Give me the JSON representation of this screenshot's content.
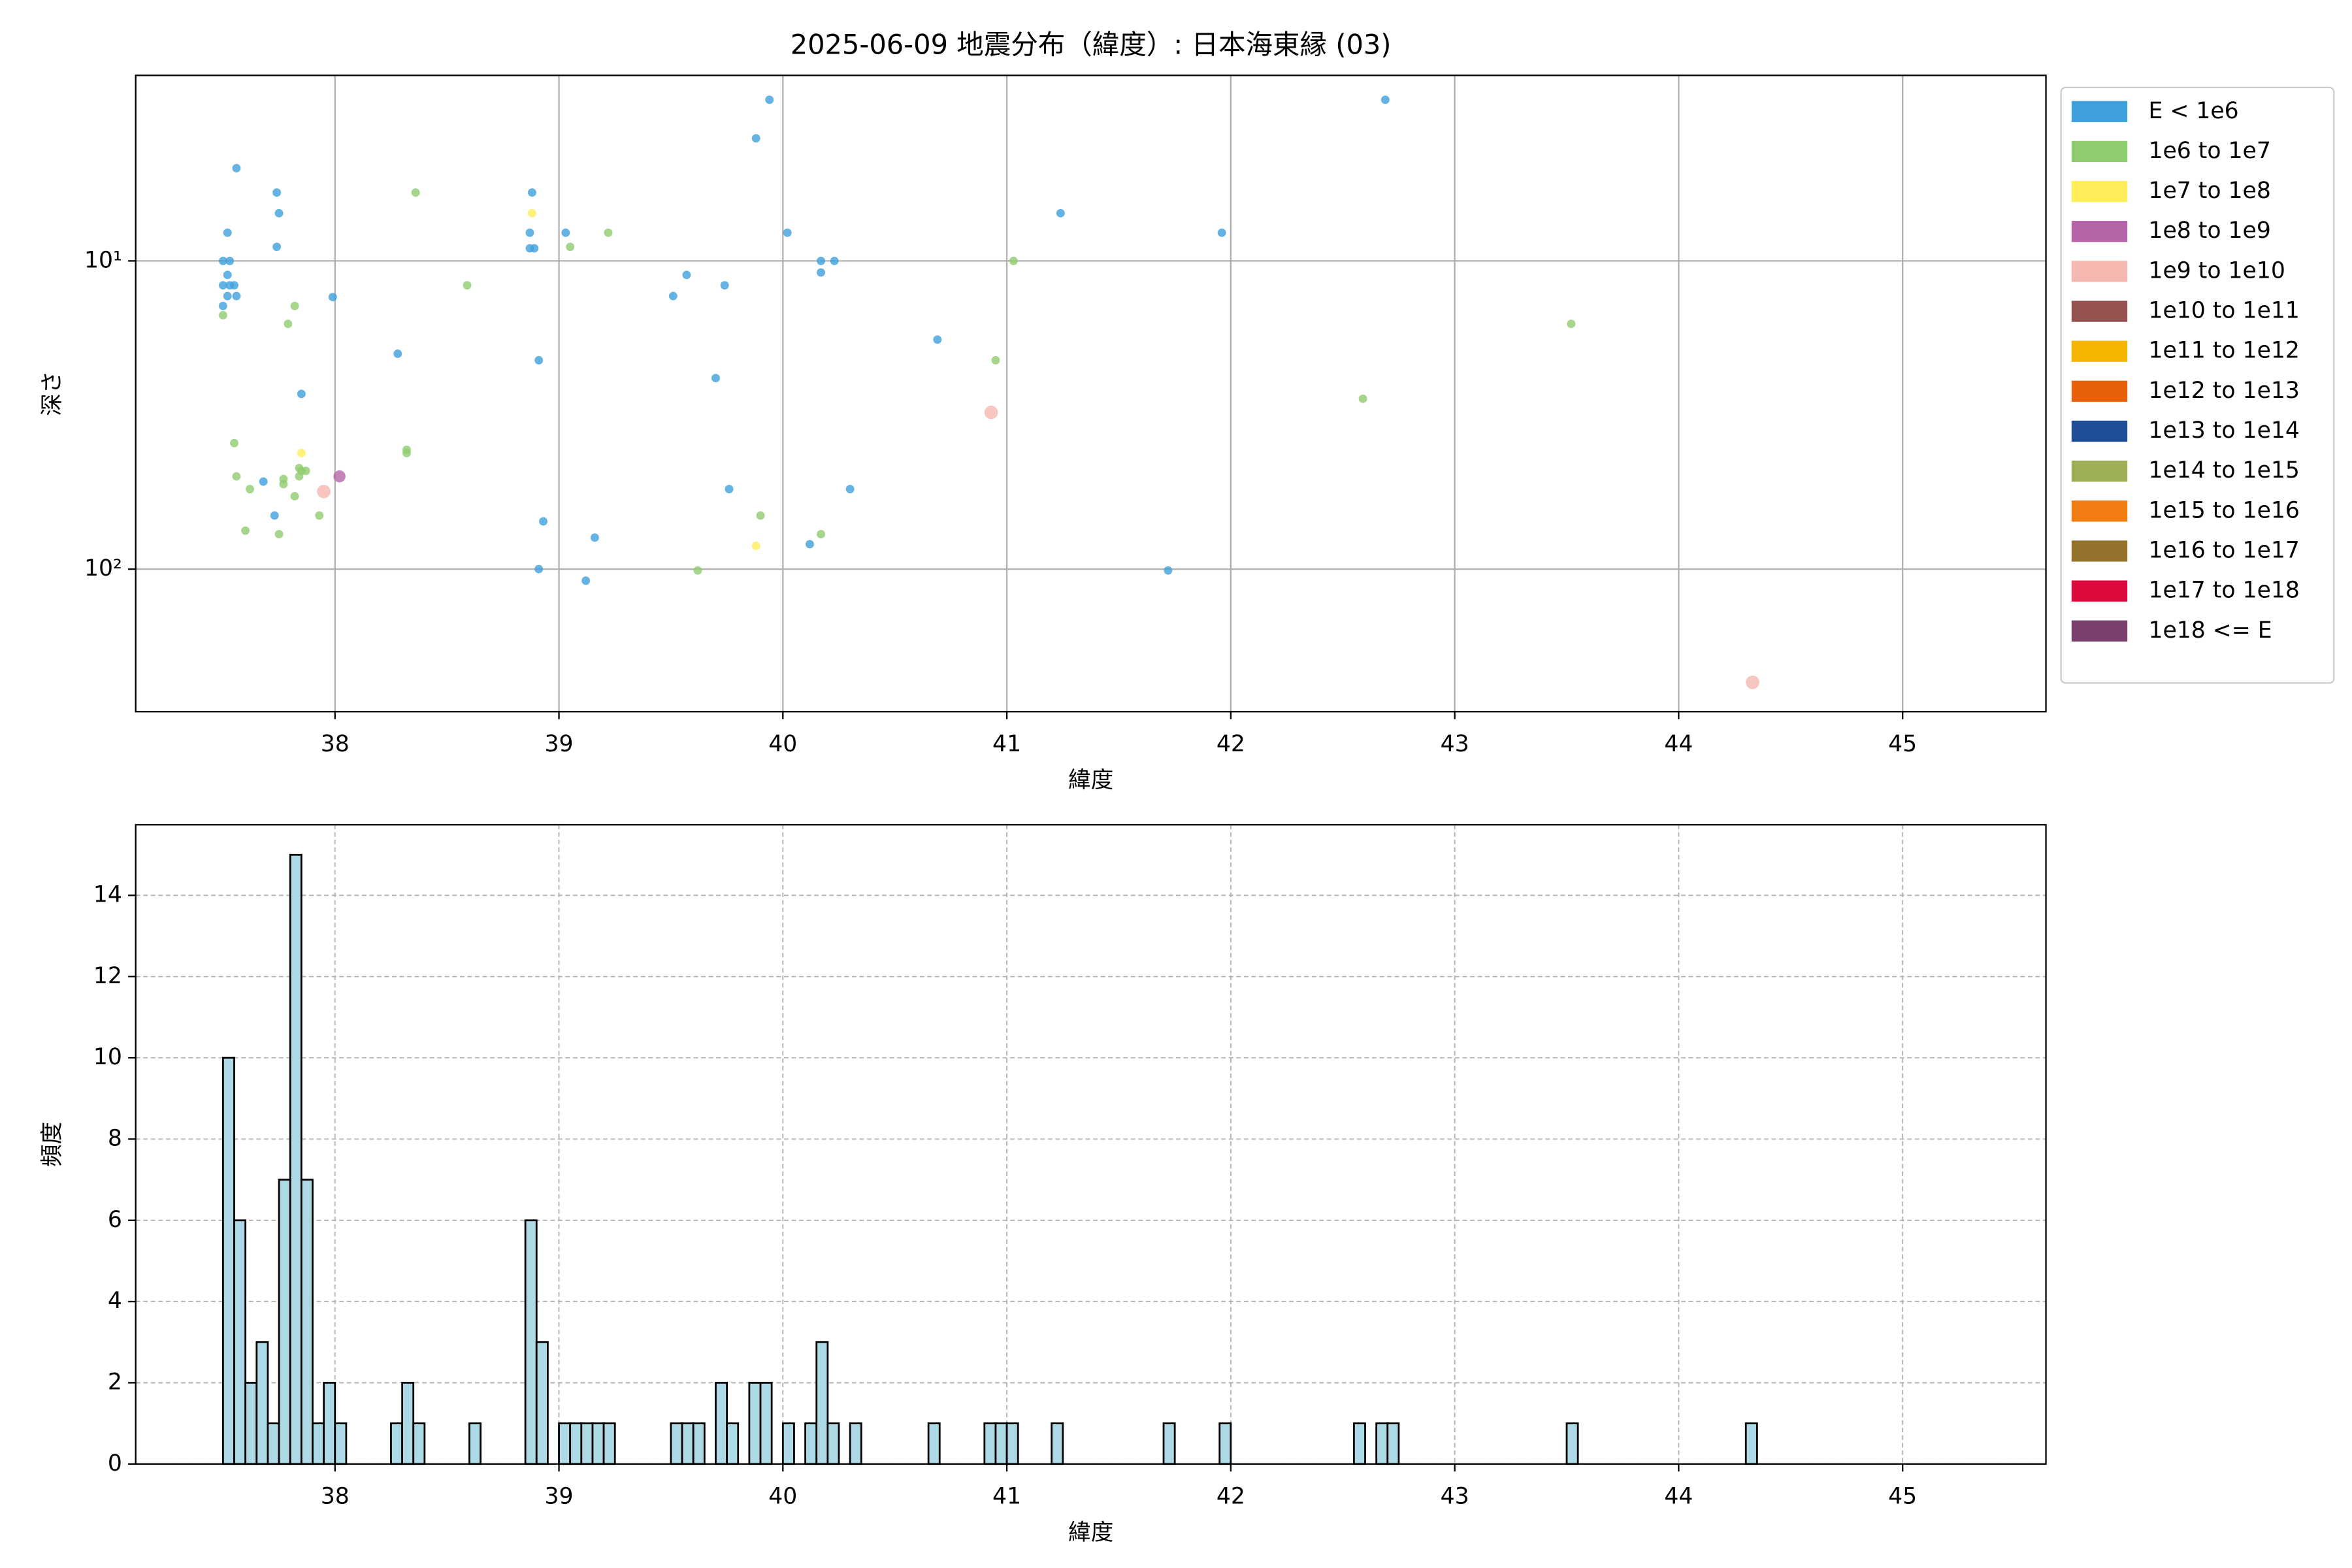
{
  "chart_data": [
    {
      "type": "scatter",
      "title": "2025-06-09 地震分布（緯度）: 日本海東縁 (03)",
      "x_label": "緯度",
      "y_label": "深さ",
      "xlim": [
        37.11,
        45.64
      ],
      "xticks": [
        38,
        39,
        40,
        41,
        42,
        43,
        44,
        45
      ],
      "ylim": [
        290,
        2.5
      ],
      "yscale": "log",
      "yticks": [
        {
          "value": 10,
          "label": "10¹"
        },
        {
          "value": 100,
          "label": "10²"
        }
      ],
      "grid": true,
      "legend": "outside right",
      "series": [
        {
          "name": "E < 1e6",
          "color": "#3fa0dc",
          "x": [
            37.5,
            37.53,
            37.5,
            37.52,
            37.53,
            37.55,
            37.52,
            37.56,
            37.5,
            37.52,
            37.56,
            37.74,
            37.75,
            37.74,
            37.99,
            37.85,
            38.28,
            37.68,
            37.73,
            38.88,
            38.87,
            38.87,
            38.89,
            38.91,
            39.03,
            38.93,
            39.16,
            38.91,
            39.12,
            39.94,
            39.88,
            40.02,
            40.17,
            40.23,
            40.17,
            39.57,
            39.74,
            39.51,
            39.7,
            39.76,
            40.3,
            40.12,
            40.69,
            41.24,
            41.96,
            41.72,
            42.69
          ],
          "values": [
            10,
            10,
            12,
            11.1,
            12,
            12,
            13,
            13,
            14,
            8.1,
            5,
            6,
            7,
            9,
            13.1,
            27,
            20,
            52,
            67,
            6,
            8.1,
            9.1,
            9.1,
            21,
            8.1,
            70,
            79,
            100,
            109,
            3,
            4,
            8.1,
            10,
            10,
            10.9,
            11.1,
            12,
            13,
            24,
            55,
            55,
            83,
            18,
            7,
            8.1,
            101,
            3
          ]
        },
        {
          "name": "1e6 to 1e7",
          "color": "#8fcc6e",
          "x": [
            38.36,
            38.59,
            37.5,
            37.79,
            37.82,
            39.05,
            39.22,
            41.03,
            40.95,
            42.59,
            43.52,
            37.55,
            37.56,
            38.32,
            38.32,
            37.62,
            37.77,
            37.77,
            37.84,
            37.82,
            37.85,
            37.87,
            37.84,
            37.93,
            37.6,
            37.75,
            39.9,
            40.17,
            39.62
          ],
          "values": [
            6,
            12,
            15,
            16,
            14,
            9,
            8.1,
            10,
            21,
            28,
            16,
            39,
            50,
            42,
            41,
            55,
            51,
            53,
            50,
            58,
            48,
            48,
            47,
            67,
            75,
            77,
            67,
            77,
            101
          ]
        },
        {
          "name": "1e7 to 1e8",
          "color": "#ffee5a",
          "x": [
            38.88,
            37.85,
            39.88
          ],
          "values": [
            7,
            42,
            84
          ]
        },
        {
          "name": "1e8 to 1e9",
          "color": "#b565a7",
          "x": [
            38.02
          ],
          "values": [
            50
          ]
        },
        {
          "name": "1e9 to 1e10",
          "color": "#f5b8b0",
          "x": [
            40.93,
            37.95,
            44.33
          ],
          "values": [
            31,
            56,
            233
          ]
        },
        {
          "name": "1e10 to 1e11",
          "color": "#955251",
          "x": [],
          "values": []
        },
        {
          "name": "1e11 to 1e12",
          "color": "#f5b400",
          "x": [],
          "values": []
        },
        {
          "name": "1e12 to 1e13",
          "color": "#e8600a",
          "x": [],
          "values": []
        },
        {
          "name": "1e13 to 1e14",
          "color": "#1f4e96",
          "x": [],
          "values": []
        },
        {
          "name": "1e14 to 1e15",
          "color": "#9caf55",
          "x": [],
          "values": []
        },
        {
          "name": "1e15 to 1e16",
          "color": "#f07c12",
          "x": [],
          "values": []
        },
        {
          "name": "1e16 to 1e17",
          "color": "#96732d",
          "x": [],
          "values": []
        },
        {
          "name": "1e17 to 1e18",
          "color": "#dc0a3c",
          "x": [],
          "values": []
        },
        {
          "name": "1e18 <= E",
          "color": "#7b3f6e",
          "x": [],
          "values": []
        }
      ]
    },
    {
      "type": "histogram",
      "x_label": "緯度",
      "y_label": "頻度",
      "color": "#add8e6",
      "edgecolor": "#000000",
      "xlim": [
        37.11,
        45.64
      ],
      "xticks": [
        38,
        39,
        40,
        41,
        42,
        43,
        44,
        45
      ],
      "ylim": [
        0,
        15.74
      ],
      "yticks": [
        0,
        2,
        4,
        6,
        8,
        10,
        12,
        14
      ],
      "grid": true,
      "bins": [
        37.5,
        37.55,
        37.6,
        37.65,
        37.7,
        37.75,
        37.8,
        37.85,
        37.9,
        37.95,
        38.0,
        38.05,
        38.1,
        38.15,
        38.2,
        38.25,
        38.3,
        38.35,
        38.4,
        38.45,
        38.5,
        38.55,
        38.6,
        38.65,
        38.7,
        38.75,
        38.8,
        38.85,
        38.9,
        38.95,
        39.0,
        39.05,
        39.1,
        39.15,
        39.2,
        39.25,
        39.3,
        39.35,
        39.4,
        39.45,
        39.5,
        39.55,
        39.6,
        39.65,
        39.7,
        39.75,
        39.8,
        39.85,
        39.9,
        39.95,
        40.0,
        40.05,
        40.1,
        40.15,
        40.2,
        40.25,
        40.3,
        40.35,
        40.4,
        40.45,
        40.5,
        40.55,
        40.6,
        40.65,
        40.7,
        40.75,
        40.8,
        40.85,
        40.9,
        40.95,
        41.0,
        41.05,
        41.1,
        41.15,
        41.2,
        41.25,
        41.3,
        41.35,
        41.4,
        41.45,
        41.5,
        41.55,
        41.6,
        41.65,
        41.7,
        41.75,
        41.8,
        41.85,
        41.9,
        41.95,
        42.0,
        42.05,
        42.1,
        42.15,
        42.2,
        42.25,
        42.3,
        42.35,
        42.4,
        42.45,
        42.5,
        42.55,
        42.6,
        42.65,
        42.7,
        42.75,
        42.8,
        42.85,
        42.9,
        42.95,
        43.0,
        43.05,
        43.1,
        43.15,
        43.2,
        43.25,
        43.3,
        43.35,
        43.4,
        43.45,
        43.5,
        43.55,
        43.6,
        43.65,
        43.7,
        43.75,
        43.8,
        43.85,
        43.9,
        43.95,
        44.0,
        44.05,
        44.1,
        44.15,
        44.2,
        44.25,
        44.3,
        44.35,
        44.4,
        44.45,
        44.5,
        44.55,
        44.6,
        44.65,
        44.7,
        44.75,
        44.8,
        44.85,
        44.9,
        44.95,
        45.0,
        45.05,
        45.1,
        45.15,
        45.2,
        45.25
      ],
      "values": [
        10,
        6,
        2,
        3,
        1,
        7,
        15,
        7,
        1,
        2,
        1,
        0,
        0,
        0,
        0,
        1,
        2,
        1,
        0,
        0,
        0,
        0,
        1,
        0,
        0,
        0,
        0,
        6,
        3,
        0,
        1,
        1,
        1,
        1,
        1,
        0,
        0,
        0,
        0,
        0,
        1,
        1,
        1,
        0,
        2,
        1,
        0,
        2,
        2,
        0,
        1,
        0,
        1,
        3,
        1,
        0,
        1,
        0,
        0,
        0,
        0,
        0,
        0,
        1,
        0,
        0,
        0,
        0,
        1,
        1,
        1,
        0,
        0,
        0,
        1,
        0,
        0,
        0,
        0,
        0,
        0,
        0,
        0,
        0,
        1,
        0,
        0,
        0,
        0,
        1,
        0,
        0,
        0,
        0,
        0,
        0,
        0,
        0,
        0,
        0,
        0,
        1,
        0,
        1,
        1,
        0,
        0,
        0,
        0,
        0,
        0,
        0,
        0,
        0,
        0,
        0,
        0,
        0,
        0,
        0,
        1,
        0,
        0,
        0,
        0,
        0,
        0,
        0,
        0,
        0,
        0,
        0,
        0,
        0,
        0,
        0,
        1,
        0,
        0,
        0,
        0,
        0,
        0,
        0,
        0,
        0,
        0,
        0,
        0,
        0,
        0,
        0,
        0,
        0,
        0
      ]
    }
  ]
}
